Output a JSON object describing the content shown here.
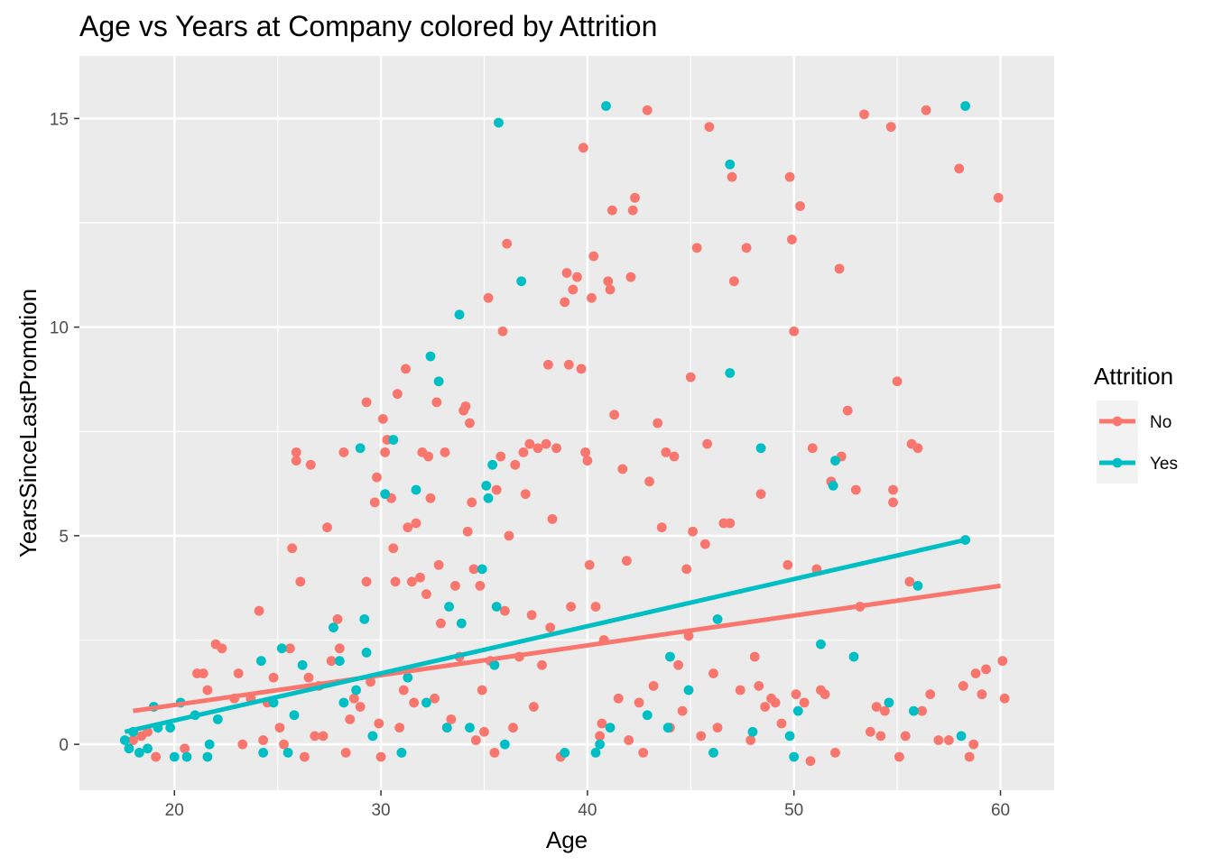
{
  "chart_data": {
    "type": "scatter",
    "title": "Age vs Years at Company colored by Attrition",
    "xlabel": "Age",
    "ylabel": "YearsSinceLastPromotion",
    "xlim": [
      15.4,
      62.6
    ],
    "ylim": [
      -1.1,
      16.5
    ],
    "x_ticks": [
      20,
      30,
      40,
      50,
      60
    ],
    "y_ticks": [
      0,
      5,
      10,
      15
    ],
    "x_tick_labels": [
      "20",
      "30",
      "40",
      "50",
      "60"
    ],
    "y_tick_labels": [
      "0",
      "5",
      "10",
      "15"
    ],
    "grid": true,
    "legend": {
      "title": "Attrition",
      "position": "right"
    },
    "series": [
      {
        "name": "No",
        "color": "#F8766D",
        "points": [
          [
            18.0,
            0.1
          ],
          [
            18.4,
            0.2
          ],
          [
            18.7,
            0.3
          ],
          [
            19.1,
            -0.3
          ],
          [
            20.5,
            -0.1
          ],
          [
            21.1,
            1.7
          ],
          [
            21.4,
            1.7
          ],
          [
            21.6,
            1.3
          ],
          [
            22.0,
            2.4
          ],
          [
            22.3,
            2.3
          ],
          [
            22.9,
            1.1
          ],
          [
            23.1,
            1.7
          ],
          [
            23.3,
            0.0
          ],
          [
            23.7,
            1.1
          ],
          [
            24.1,
            3.2
          ],
          [
            24.3,
            0.1
          ],
          [
            24.5,
            1.0
          ],
          [
            24.8,
            1.6
          ],
          [
            25.1,
            0.4
          ],
          [
            25.3,
            0.0
          ],
          [
            25.6,
            2.3
          ],
          [
            25.7,
            4.7
          ],
          [
            25.9,
            7.0
          ],
          [
            25.9,
            6.8
          ],
          [
            26.1,
            3.9
          ],
          [
            26.3,
            -0.3
          ],
          [
            26.5,
            1.6
          ],
          [
            26.6,
            6.7
          ],
          [
            26.8,
            0.2
          ],
          [
            27.0,
            1.4
          ],
          [
            27.2,
            0.2
          ],
          [
            27.4,
            5.2
          ],
          [
            27.6,
            2.0
          ],
          [
            27.9,
            3.0
          ],
          [
            28.0,
            2.3
          ],
          [
            28.2,
            7.0
          ],
          [
            28.3,
            -0.2
          ],
          [
            28.5,
            0.6
          ],
          [
            28.7,
            1.1
          ],
          [
            29.0,
            0.9
          ],
          [
            29.3,
            8.2
          ],
          [
            29.3,
            3.9
          ],
          [
            29.5,
            1.5
          ],
          [
            29.7,
            5.8
          ],
          [
            29.8,
            6.4
          ],
          [
            29.9,
            0.5
          ],
          [
            30.0,
            -0.3
          ],
          [
            30.1,
            7.8
          ],
          [
            30.2,
            7.0
          ],
          [
            30.3,
            7.3
          ],
          [
            30.5,
            5.9
          ],
          [
            30.6,
            4.7
          ],
          [
            30.7,
            3.9
          ],
          [
            30.8,
            8.4
          ],
          [
            30.9,
            0.4
          ],
          [
            31.0,
            -0.2
          ],
          [
            31.1,
            1.3
          ],
          [
            31.2,
            9.0
          ],
          [
            31.3,
            5.2
          ],
          [
            31.5,
            3.9
          ],
          [
            31.6,
            1.0
          ],
          [
            31.7,
            5.3
          ],
          [
            31.9,
            4.0
          ],
          [
            32.0,
            7.0
          ],
          [
            32.2,
            3.6
          ],
          [
            32.3,
            6.9
          ],
          [
            32.4,
            5.9
          ],
          [
            32.6,
            1.1
          ],
          [
            32.7,
            8.2
          ],
          [
            32.8,
            4.3
          ],
          [
            32.9,
            2.9
          ],
          [
            33.1,
            7.0
          ],
          [
            33.2,
            0.4
          ],
          [
            33.4,
            0.6
          ],
          [
            33.6,
            3.8
          ],
          [
            33.8,
            2.1
          ],
          [
            34.0,
            8.0
          ],
          [
            34.1,
            8.1
          ],
          [
            34.2,
            5.1
          ],
          [
            34.3,
            7.7
          ],
          [
            34.4,
            5.8
          ],
          [
            34.5,
            4.2
          ],
          [
            34.6,
            0.1
          ],
          [
            34.8,
            3.8
          ],
          [
            34.9,
            1.3
          ],
          [
            35.0,
            0.3
          ],
          [
            35.2,
            10.7
          ],
          [
            35.3,
            2.0
          ],
          [
            35.5,
            -0.2
          ],
          [
            35.6,
            6.1
          ],
          [
            35.8,
            6.9
          ],
          [
            35.9,
            9.9
          ],
          [
            36.0,
            3.2
          ],
          [
            36.1,
            12.0
          ],
          [
            36.2,
            5.0
          ],
          [
            36.4,
            0.4
          ],
          [
            36.5,
            6.7
          ],
          [
            36.7,
            2.1
          ],
          [
            36.9,
            7.0
          ],
          [
            37.0,
            6.0
          ],
          [
            37.2,
            7.2
          ],
          [
            37.3,
            3.1
          ],
          [
            37.4,
            0.9
          ],
          [
            37.6,
            7.1
          ],
          [
            37.8,
            1.9
          ],
          [
            38.0,
            7.2
          ],
          [
            38.1,
            9.1
          ],
          [
            38.2,
            2.8
          ],
          [
            38.3,
            5.4
          ],
          [
            38.5,
            7.1
          ],
          [
            38.7,
            -0.3
          ],
          [
            38.9,
            10.6
          ],
          [
            39.0,
            11.3
          ],
          [
            39.1,
            9.1
          ],
          [
            39.2,
            3.3
          ],
          [
            39.3,
            10.9
          ],
          [
            39.5,
            11.2
          ],
          [
            39.7,
            9.0
          ],
          [
            39.8,
            14.3
          ],
          [
            39.9,
            7.0
          ],
          [
            40.0,
            6.8
          ],
          [
            40.1,
            4.3
          ],
          [
            40.2,
            10.7
          ],
          [
            40.3,
            11.7
          ],
          [
            40.4,
            3.3
          ],
          [
            40.6,
            0.2
          ],
          [
            40.7,
            0.5
          ],
          [
            40.8,
            2.5
          ],
          [
            41.0,
            11.1
          ],
          [
            41.1,
            10.9
          ],
          [
            41.2,
            12.8
          ],
          [
            41.3,
            7.9
          ],
          [
            41.5,
            1.1
          ],
          [
            41.7,
            6.6
          ],
          [
            41.9,
            4.4
          ],
          [
            42.0,
            0.1
          ],
          [
            42.1,
            11.2
          ],
          [
            42.2,
            12.8
          ],
          [
            42.3,
            13.1
          ],
          [
            42.5,
            1.0
          ],
          [
            42.7,
            -0.2
          ],
          [
            42.9,
            15.2
          ],
          [
            43.0,
            6.3
          ],
          [
            43.2,
            1.4
          ],
          [
            43.4,
            7.7
          ],
          [
            43.6,
            5.2
          ],
          [
            43.8,
            7.0
          ],
          [
            44.0,
            0.4
          ],
          [
            44.2,
            6.9
          ],
          [
            44.4,
            1.9
          ],
          [
            44.6,
            0.8
          ],
          [
            44.8,
            4.2
          ],
          [
            44.9,
            2.6
          ],
          [
            45.0,
            8.8
          ],
          [
            45.1,
            5.1
          ],
          [
            45.3,
            11.9
          ],
          [
            45.5,
            0.2
          ],
          [
            45.7,
            4.8
          ],
          [
            45.8,
            7.2
          ],
          [
            45.9,
            14.8
          ],
          [
            46.1,
            1.7
          ],
          [
            46.3,
            0.4
          ],
          [
            46.6,
            5.3
          ],
          [
            46.9,
            5.3
          ],
          [
            47.0,
            13.6
          ],
          [
            47.1,
            11.1
          ],
          [
            47.4,
            1.3
          ],
          [
            47.7,
            11.9
          ],
          [
            47.9,
            0.1
          ],
          [
            48.1,
            2.1
          ],
          [
            48.3,
            1.4
          ],
          [
            48.4,
            6.0
          ],
          [
            48.6,
            0.9
          ],
          [
            48.9,
            1.1
          ],
          [
            49.1,
            1.0
          ],
          [
            49.4,
            0.5
          ],
          [
            49.7,
            4.3
          ],
          [
            49.8,
            13.6
          ],
          [
            49.9,
            12.1
          ],
          [
            50.0,
            9.9
          ],
          [
            50.1,
            1.2
          ],
          [
            50.3,
            12.9
          ],
          [
            50.5,
            1.0
          ],
          [
            50.8,
            -0.4
          ],
          [
            50.9,
            7.1
          ],
          [
            51.1,
            4.2
          ],
          [
            51.3,
            1.3
          ],
          [
            51.5,
            1.2
          ],
          [
            51.8,
            6.3
          ],
          [
            52.0,
            -0.2
          ],
          [
            52.2,
            11.4
          ],
          [
            52.3,
            6.9
          ],
          [
            52.6,
            8.0
          ],
          [
            53.0,
            6.1
          ],
          [
            53.2,
            3.3
          ],
          [
            53.4,
            15.1
          ],
          [
            53.7,
            0.3
          ],
          [
            54.0,
            0.9
          ],
          [
            54.2,
            0.2
          ],
          [
            54.4,
            0.8
          ],
          [
            54.7,
            14.8
          ],
          [
            54.8,
            6.1
          ],
          [
            54.8,
            5.8
          ],
          [
            55.0,
            8.7
          ],
          [
            55.1,
            -0.3
          ],
          [
            55.4,
            0.2
          ],
          [
            55.6,
            3.9
          ],
          [
            55.7,
            7.2
          ],
          [
            56.0,
            7.1
          ],
          [
            56.2,
            0.8
          ],
          [
            56.4,
            15.2
          ],
          [
            56.6,
            1.2
          ],
          [
            57.0,
            0.1
          ],
          [
            57.5,
            0.1
          ],
          [
            58.0,
            13.8
          ],
          [
            58.2,
            1.4
          ],
          [
            58.5,
            -0.3
          ],
          [
            58.7,
            0.0
          ],
          [
            58.8,
            1.7
          ],
          [
            59.1,
            1.2
          ],
          [
            59.3,
            1.8
          ],
          [
            59.9,
            13.1
          ],
          [
            60.1,
            2.0
          ],
          [
            60.2,
            1.1
          ]
        ],
        "trend": [
          [
            18.0,
            0.8
          ],
          [
            60.0,
            3.8
          ]
        ]
      },
      {
        "name": "Yes",
        "color": "#00BFC4",
        "points": [
          [
            17.6,
            0.1
          ],
          [
            17.8,
            -0.1
          ],
          [
            18.0,
            0.3
          ],
          [
            18.3,
            -0.2
          ],
          [
            18.7,
            -0.1
          ],
          [
            19.0,
            0.9
          ],
          [
            19.2,
            0.4
          ],
          [
            19.8,
            0.4
          ],
          [
            20.0,
            -0.3
          ],
          [
            20.3,
            1.0
          ],
          [
            20.6,
            -0.3
          ],
          [
            21.0,
            0.7
          ],
          [
            21.6,
            -0.3
          ],
          [
            21.7,
            0.0
          ],
          [
            22.1,
            0.6
          ],
          [
            24.2,
            2.0
          ],
          [
            24.3,
            -0.2
          ],
          [
            24.8,
            1.0
          ],
          [
            25.2,
            2.3
          ],
          [
            25.5,
            -0.2
          ],
          [
            25.8,
            0.7
          ],
          [
            26.2,
            1.9
          ],
          [
            27.7,
            2.8
          ],
          [
            28.0,
            2.0
          ],
          [
            28.2,
            1.0
          ],
          [
            28.8,
            1.3
          ],
          [
            29.0,
            7.1
          ],
          [
            29.2,
            3.0
          ],
          [
            29.3,
            2.2
          ],
          [
            29.6,
            0.2
          ],
          [
            30.2,
            6.0
          ],
          [
            30.6,
            7.3
          ],
          [
            31.0,
            -0.2
          ],
          [
            31.3,
            1.6
          ],
          [
            31.7,
            6.1
          ],
          [
            32.2,
            1.0
          ],
          [
            32.4,
            9.3
          ],
          [
            32.8,
            8.7
          ],
          [
            33.2,
            0.4
          ],
          [
            33.3,
            3.3
          ],
          [
            33.8,
            10.3
          ],
          [
            33.9,
            2.9
          ],
          [
            34.3,
            0.4
          ],
          [
            34.9,
            4.2
          ],
          [
            35.1,
            6.2
          ],
          [
            35.2,
            5.9
          ],
          [
            35.4,
            6.7
          ],
          [
            35.5,
            1.9
          ],
          [
            35.6,
            3.3
          ],
          [
            35.7,
            14.9
          ],
          [
            36.0,
            0.0
          ],
          [
            36.8,
            11.1
          ],
          [
            38.9,
            -0.2
          ],
          [
            40.4,
            -0.2
          ],
          [
            40.6,
            0.0
          ],
          [
            40.9,
            15.3
          ],
          [
            41.1,
            0.4
          ],
          [
            42.9,
            0.7
          ],
          [
            43.9,
            0.4
          ],
          [
            44.0,
            2.1
          ],
          [
            44.9,
            1.3
          ],
          [
            46.1,
            -0.2
          ],
          [
            46.3,
            3.0
          ],
          [
            46.9,
            13.9
          ],
          [
            46.9,
            8.9
          ],
          [
            48.0,
            0.3
          ],
          [
            48.4,
            7.1
          ],
          [
            49.8,
            0.2
          ],
          [
            50.0,
            -0.3
          ],
          [
            50.2,
            0.8
          ],
          [
            51.3,
            2.4
          ],
          [
            51.9,
            6.2
          ],
          [
            52.0,
            6.8
          ],
          [
            52.9,
            2.1
          ],
          [
            54.6,
            1.0
          ],
          [
            55.8,
            0.8
          ],
          [
            56.0,
            3.8
          ],
          [
            58.1,
            0.2
          ],
          [
            58.3,
            15.3
          ],
          [
            58.3,
            4.9
          ]
        ],
        "trend": [
          [
            17.6,
            0.3
          ],
          [
            58.3,
            4.9
          ]
        ]
      }
    ]
  }
}
